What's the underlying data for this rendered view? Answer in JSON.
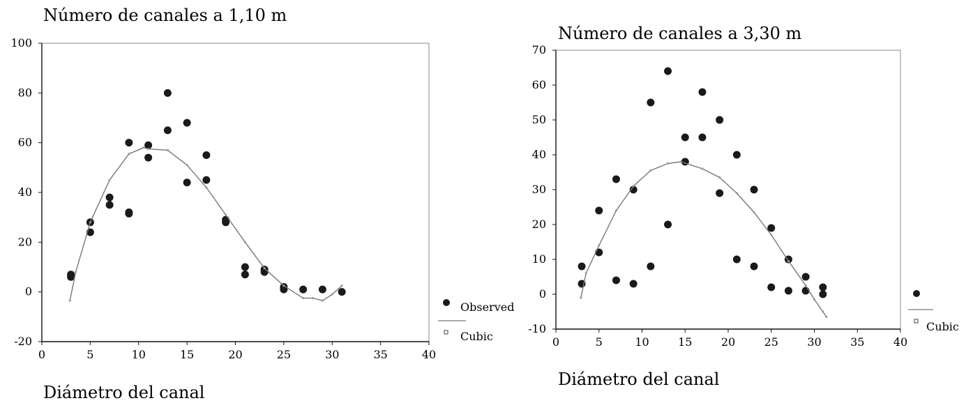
{
  "chart_data": [
    {
      "type": "scatter",
      "title": "Número de canales a 1,10 m",
      "xlabel": "Diámetro del canal",
      "ylabel": "",
      "xlim": [
        0,
        40
      ],
      "ylim": [
        -20,
        100
      ],
      "xticks": [
        "0",
        "5",
        "10",
        "15",
        "20",
        "25",
        "30",
        "35",
        "40"
      ],
      "yticks": [
        "-20",
        "0",
        "20",
        "40",
        "60",
        "80",
        "100"
      ],
      "grid": false,
      "legend": [
        "Observed",
        "Cubic"
      ],
      "series": [
        {
          "name": "Observed",
          "type": "scatter",
          "color": "#1a1a1a",
          "points": [
            [
              3,
              7
            ],
            [
              3,
              6
            ],
            [
              5,
              28
            ],
            [
              5,
              24
            ],
            [
              7,
              38
            ],
            [
              7,
              35
            ],
            [
              9,
              60
            ],
            [
              9,
              32
            ],
            [
              9,
              31.5
            ],
            [
              11,
              59
            ],
            [
              11,
              54
            ],
            [
              13,
              80
            ],
            [
              13,
              65
            ],
            [
              15,
              68
            ],
            [
              15,
              44
            ],
            [
              17,
              55
            ],
            [
              17,
              45
            ],
            [
              19,
              29
            ],
            [
              19,
              28
            ],
            [
              21,
              10
            ],
            [
              21,
              7
            ],
            [
              23,
              9
            ],
            [
              23,
              8
            ],
            [
              25,
              2
            ],
            [
              25,
              1
            ],
            [
              27,
              1
            ],
            [
              29,
              1
            ],
            [
              31,
              0
            ]
          ]
        },
        {
          "name": "Cubic",
          "type": "line",
          "color": "#777777",
          "points": [
            [
              2.9,
              -3.5
            ],
            [
              3.5,
              8
            ],
            [
              5,
              28
            ],
            [
              7,
              45
            ],
            [
              9,
              55.5
            ],
            [
              10.5,
              58
            ],
            [
              11,
              57.5
            ],
            [
              13,
              57
            ],
            [
              15,
              51
            ],
            [
              17,
              42
            ],
            [
              19,
              31
            ],
            [
              21,
              20
            ],
            [
              23,
              9.5
            ],
            [
              25,
              2.5
            ],
            [
              27,
              -2.5
            ],
            [
              28,
              -2.5
            ],
            [
              29,
              -3.5
            ],
            [
              30,
              -1
            ],
            [
              31,
              2.5
            ]
          ]
        }
      ]
    },
    {
      "type": "scatter",
      "title": "Número de canales a 3,30 m",
      "xlabel": "Diámetro del canal",
      "ylabel": "",
      "xlim": [
        0,
        40
      ],
      "ylim": [
        -10,
        70
      ],
      "xticks": [
        "0",
        "5",
        "10",
        "15",
        "20",
        "25",
        "30",
        "35",
        "40"
      ],
      "yticks": [
        "-10",
        "0",
        "10",
        "20",
        "30",
        "40",
        "50",
        "60",
        "70"
      ],
      "grid": false,
      "legend": [
        "Cubic"
      ],
      "series": [
        {
          "name": "",
          "type": "scatter",
          "color": "#1a1a1a",
          "points": [
            [
              3,
              8
            ],
            [
              3,
              3
            ],
            [
              5,
              24
            ],
            [
              5,
              12
            ],
            [
              7,
              33
            ],
            [
              7,
              4
            ],
            [
              9,
              30
            ],
            [
              9,
              3
            ],
            [
              11,
              55
            ],
            [
              11,
              8
            ],
            [
              13,
              64
            ],
            [
              13,
              20
            ],
            [
              15,
              45
            ],
            [
              15,
              38
            ],
            [
              17,
              58
            ],
            [
              17,
              45
            ],
            [
              19,
              50
            ],
            [
              19,
              29
            ],
            [
              21,
              40
            ],
            [
              21,
              10
            ],
            [
              23,
              30
            ],
            [
              23,
              8
            ],
            [
              25,
              19
            ],
            [
              25,
              2
            ],
            [
              27,
              10
            ],
            [
              27,
              1
            ],
            [
              29,
              5
            ],
            [
              29,
              1
            ],
            [
              31,
              2
            ],
            [
              31,
              0
            ]
          ]
        },
        {
          "name": "Cubic",
          "type": "line",
          "color": "#777777",
          "points": [
            [
              2.9,
              -1
            ],
            [
              3.5,
              6
            ],
            [
              5,
              14
            ],
            [
              7,
              24
            ],
            [
              9,
              31
            ],
            [
              11,
              35.5
            ],
            [
              13,
              37.5
            ],
            [
              14.5,
              38
            ],
            [
              17,
              36
            ],
            [
              19,
              33.5
            ],
            [
              21,
              29
            ],
            [
              23,
              23.5
            ],
            [
              25,
              17
            ],
            [
              27,
              9.5
            ],
            [
              29,
              2.5
            ],
            [
              30,
              -1.5
            ],
            [
              31,
              -5
            ],
            [
              31.4,
              -6.5
            ]
          ]
        }
      ]
    }
  ]
}
